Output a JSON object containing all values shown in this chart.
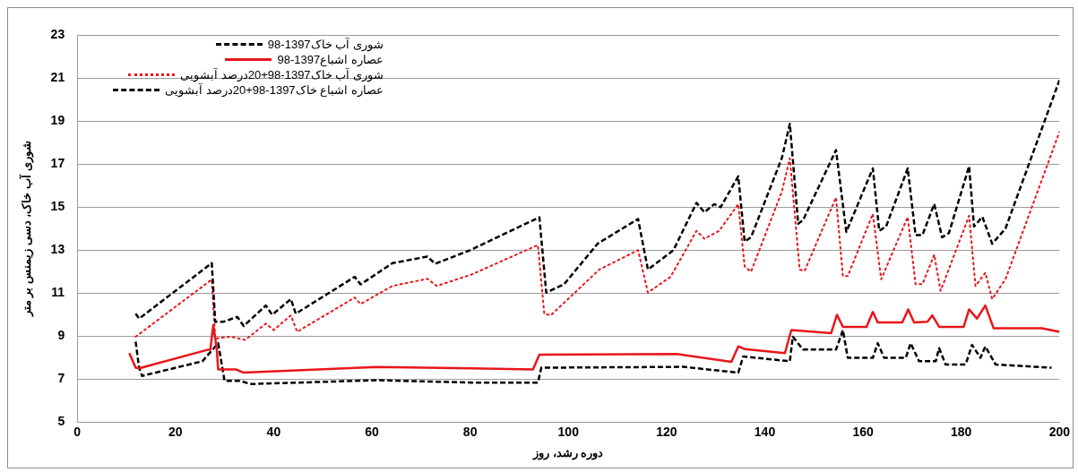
{
  "chart_data": {
    "type": "line",
    "xlabel": "دوره رشد، روز",
    "ylabel": "شوری آب خاک، دسی زیمنس بر متر",
    "xlim": [
      0,
      200
    ],
    "xticks": [
      0,
      20,
      40,
      60,
      80,
      100,
      120,
      140,
      160,
      180,
      200
    ],
    "ylim": [
      5,
      23
    ],
    "yticks": [
      5,
      7,
      9,
      11,
      13,
      15,
      17,
      19,
      21,
      23
    ],
    "grid": "y",
    "legend": "top left",
    "marker": "none",
    "series": [
      {
        "name": "شوری آب خاک1397-98",
        "color": "#000000",
        "line_style": "dashed",
        "x": [
          11.9,
          12.6,
          27.4,
          28.1,
          29.7,
          32.6,
          33.9,
          38.4,
          39.7,
          43.5,
          44.5,
          56.5,
          57.7,
          64.2,
          71.3,
          72.9,
          80,
          94.1,
          95.5,
          99.1,
          106,
          114.2,
          116.2,
          121.4,
          126.1,
          127.7,
          129.7,
          131,
          134.6,
          135.9,
          137.2,
          143.5,
          145.1,
          146.8,
          147.8,
          154.5,
          156.6,
          162,
          163.3,
          164.7,
          169.1,
          170.7,
          172.1,
          174.5,
          176.1,
          177.5,
          181.6,
          182.6,
          184.3,
          186.3,
          189,
          200
        ],
        "values": [
          10.05,
          9.82,
          12.4,
          9.67,
          9.67,
          9.9,
          9.48,
          10.43,
          10,
          10.73,
          10.05,
          11.76,
          11.41,
          12.4,
          12.7,
          12.37,
          13,
          14.53,
          11.03,
          11.41,
          13.31,
          14.45,
          12.1,
          13,
          15.2,
          14.76,
          15.14,
          15,
          16.43,
          13.4,
          13.6,
          17.3,
          18.87,
          14.23,
          14.4,
          17.65,
          13.85,
          16.8,
          13.9,
          14.1,
          16.8,
          13.7,
          13.7,
          15.15,
          13.6,
          13.8,
          16.9,
          14.1,
          14.55,
          13.3,
          14,
          20.9
        ]
      },
      {
        "name": "عصاره اشباع1397-98",
        "color": "#e8161b",
        "line_style": "solid",
        "x": [
          10.6,
          11.9,
          12.6,
          26.5,
          27.1,
          27.7,
          28.4,
          28.7,
          32.3,
          33.9,
          61,
          80.3,
          92.8,
          94.1,
          122.1,
          133.2,
          134.6,
          135.9,
          144.1,
          145.4,
          153.5,
          154.7,
          155.9,
          160.7,
          162,
          163,
          168,
          169.2,
          170.4,
          173.1,
          174.1,
          175.5,
          180.5,
          181.6,
          183.2,
          184.9,
          186.6,
          196.4,
          200
        ],
        "values": [
          8.22,
          7.54,
          7.51,
          8.37,
          8.37,
          9.51,
          8.45,
          7.46,
          7.46,
          7.31,
          7.57,
          7.51,
          7.46,
          8.15,
          8.18,
          7.81,
          8.53,
          8.41,
          8.22,
          9.29,
          9.14,
          10,
          9.44,
          9.44,
          10.13,
          9.64,
          9.64,
          10.25,
          9.64,
          9.67,
          9.97,
          9.44,
          9.44,
          10.25,
          9.82,
          10.43,
          9.37,
          9.37,
          9.21
        ]
      },
      {
        "name": "شوری آب خاک1397-98+20درصد آبشویی",
        "color": "#e8161b",
        "line_style": "dotted",
        "x": [
          11.9,
          27.4,
          28.1,
          31.3,
          34.2,
          38.4,
          40,
          43.5,
          44.8,
          56.5,
          57.7,
          64.2,
          71.3,
          73.2,
          80.3,
          93.8,
          95.1,
          96.4,
          106.3,
          114.2,
          116.2,
          120.8,
          126.1,
          127.7,
          130.7,
          134.6,
          135.9,
          137.2,
          143.5,
          145.1,
          147.1,
          148.1,
          154.5,
          155.9,
          156.9,
          162,
          163.7,
          169.1,
          170.7,
          172.1,
          174.5,
          175.8,
          181.6,
          182.9,
          184.9,
          186.3,
          189,
          200
        ],
        "values": [
          8.98,
          11.64,
          8.9,
          8.98,
          8.83,
          9.59,
          9.29,
          9.97,
          9.21,
          10.8,
          10.5,
          11.34,
          11.67,
          11.34,
          11.87,
          13.24,
          10.05,
          9.97,
          12.1,
          13,
          11.03,
          11.76,
          13.9,
          13.53,
          13.9,
          15.14,
          12.25,
          12,
          15.74,
          17.27,
          12.1,
          12.03,
          15.45,
          11.8,
          11.8,
          14.69,
          11.65,
          14.54,
          11.42,
          11.42,
          12.79,
          11.11,
          14.6,
          11.34,
          11.95,
          10.73,
          11.65,
          18.5
        ]
      },
      {
        "name": "عصاره اشباع خاک1397-98+20درصد آبشویی",
        "color": "#000000",
        "line_style": "dashed",
        "x": [
          11.9,
          12.6,
          13.2,
          25.5,
          28.7,
          30,
          33.2,
          35.2,
          61,
          80.3,
          93.8,
          94.5,
          123.4,
          134.6,
          135.6,
          145.1,
          145.7,
          147.8,
          154.5,
          155.9,
          156.9,
          162,
          163,
          164.3,
          168.7,
          169.7,
          171.4,
          174.8,
          175.5,
          176.8,
          180.9,
          182.2,
          183.9,
          184.9,
          187,
          198.4
        ],
        "values": [
          8.75,
          7.54,
          7.16,
          7.84,
          8.68,
          6.93,
          6.93,
          6.78,
          6.96,
          6.85,
          6.85,
          7.54,
          7.58,
          7.31,
          8.06,
          7.84,
          8.98,
          8.38,
          8.38,
          9.29,
          8,
          8,
          8.68,
          8,
          8,
          8.68,
          7.84,
          7.84,
          8.45,
          7.69,
          7.69,
          8.6,
          8,
          8.53,
          7.69,
          7.54
        ]
      }
    ]
  }
}
